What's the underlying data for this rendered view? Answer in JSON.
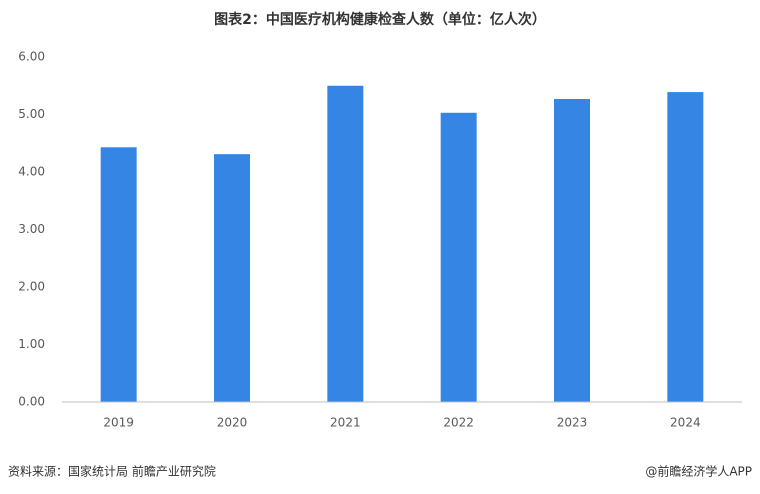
{
  "chart_data": {
    "type": "bar",
    "title": "图表2：中国医疗机构健康检查人数（单位：亿人次）",
    "categories": [
      "2019",
      "2020",
      "2021",
      "2022",
      "2023",
      "2024"
    ],
    "values": [
      4.43,
      4.31,
      5.5,
      5.03,
      5.27,
      5.39
    ],
    "color": "#3585e5",
    "ylim": [
      0,
      6
    ],
    "yticks": [
      {
        "value": 0,
        "label": "0.00"
      },
      {
        "value": 1,
        "label": "1.00"
      },
      {
        "value": 2,
        "label": "2.00"
      },
      {
        "value": 3,
        "label": "3.00"
      },
      {
        "value": 4,
        "label": "4.00"
      },
      {
        "value": 5,
        "label": "5.00"
      },
      {
        "value": 6,
        "label": "6.00"
      }
    ],
    "grid": false,
    "source": "资料来源：国家统计局 前瞻产业研究院",
    "credit": "@前瞻经济学人APP"
  }
}
